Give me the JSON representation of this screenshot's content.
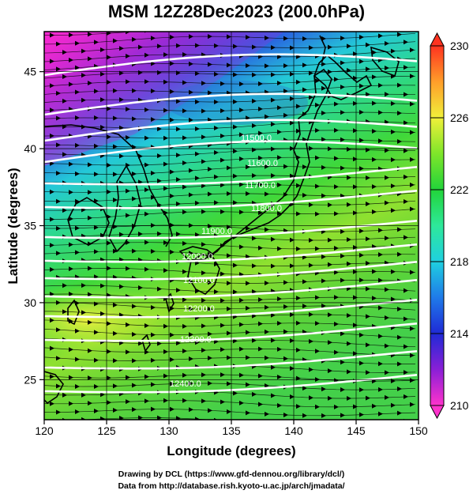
{
  "title": "MSM 12Z28Dec2023 (200.0hPa)",
  "axes": {
    "xlabel": "Longitude (degrees)",
    "ylabel": "Latitude  (degrees)",
    "x_ticks": [
      "120",
      "125",
      "130",
      "135",
      "140",
      "145",
      "150"
    ],
    "y_ticks": [
      "25",
      "30",
      "35",
      "40",
      "45"
    ]
  },
  "colorbar": {
    "ticks": [
      "210",
      "214",
      "218",
      "222",
      "226",
      "230"
    ],
    "min": 210,
    "max": 230
  },
  "contour_labels": [
    "11500.0",
    "11600.0",
    "11700.0",
    "11800.0",
    "11900.0",
    "12000.0",
    "12100.0",
    "12200.0",
    "12300.0",
    "12400.0"
  ],
  "credits": {
    "line1": "Drawing by DCL (https://www.gfd-dennou.org/library/dcl/)",
    "line2": "Data from http://database.rish.kyoto-u.ac.jp/arch/jmadata/"
  },
  "chart_data": {
    "type": "heatmap",
    "title": "MSM 12Z28Dec2023 (200.0hPa)",
    "xlabel": "Longitude (degrees)",
    "ylabel": "Latitude  (degrees)",
    "xlim": [
      120,
      150
    ],
    "ylim": [
      22.4,
      47.6
    ],
    "colorbar_range": [
      210,
      230
    ],
    "colorbar_ticks": [
      210,
      214,
      218,
      222,
      226,
      230
    ],
    "contour_levels": [
      11500,
      11600,
      11700,
      11800,
      11900,
      12000,
      12100,
      12200,
      12300,
      12400
    ],
    "grid": true,
    "vectors": "wind streamlines with arrows, predominantly westerly"
  }
}
